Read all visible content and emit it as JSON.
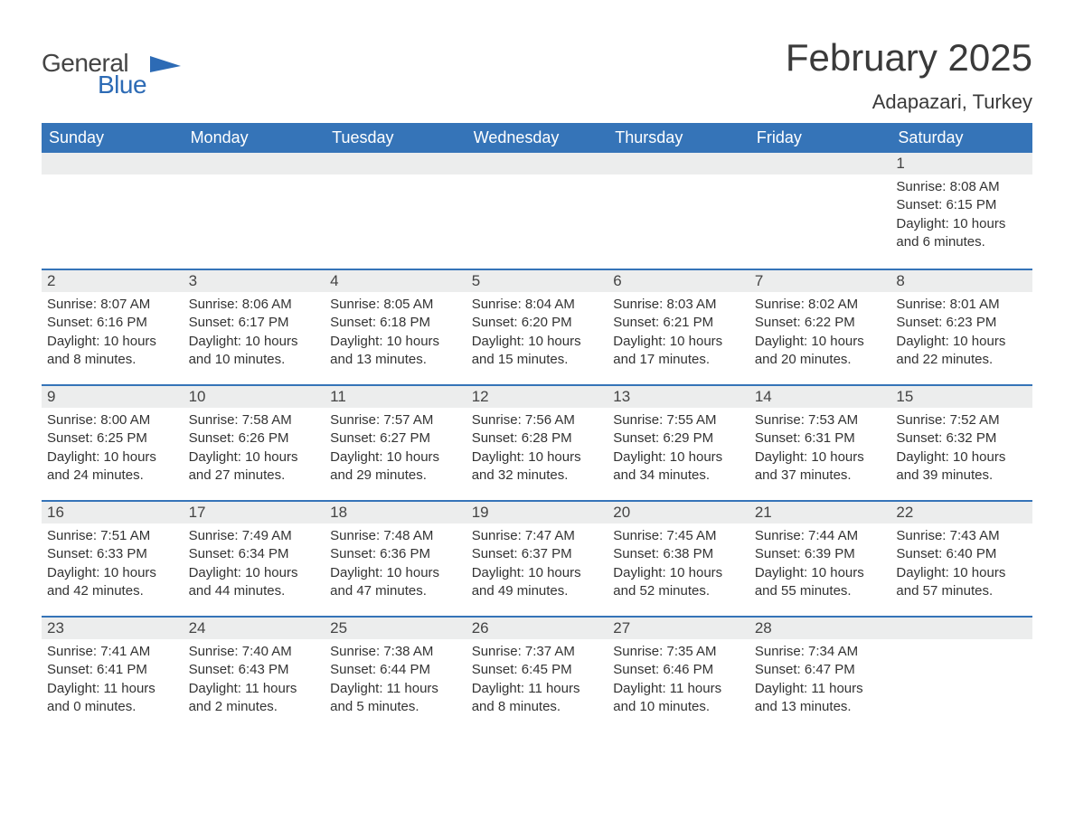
{
  "logo": {
    "text1": "General",
    "text2": "Blue",
    "icon_color": "#2d6bb5"
  },
  "title": "February 2025",
  "subtitle": "Adapazari, Turkey",
  "colors": {
    "header_bg": "#3574b8",
    "header_text": "#ffffff",
    "strip_bg": "#eceded",
    "border": "#3574b8",
    "body_text": "#333333",
    "title_text": "#3a3a3a",
    "logo_gray": "#444444",
    "logo_blue": "#2d6bb5",
    "page_bg": "#ffffff"
  },
  "typography": {
    "title_fontsize": 42,
    "subtitle_fontsize": 22,
    "dayheader_fontsize": 18,
    "daynum_fontsize": 17,
    "body_fontsize": 15,
    "logo_fontsize": 28
  },
  "layout": {
    "cols": 7,
    "rows": 5,
    "cell_min_height": 128
  },
  "labels": {
    "sunrise": "Sunrise:",
    "sunset": "Sunset:",
    "daylight": "Daylight:"
  },
  "day_names": [
    "Sunday",
    "Monday",
    "Tuesday",
    "Wednesday",
    "Thursday",
    "Friday",
    "Saturday"
  ],
  "weeks": [
    [
      {
        "empty": true
      },
      {
        "empty": true
      },
      {
        "empty": true
      },
      {
        "empty": true
      },
      {
        "empty": true
      },
      {
        "empty": true
      },
      {
        "num": "1",
        "sunrise": "8:08 AM",
        "sunset": "6:15 PM",
        "daylight": "10 hours and 6 minutes."
      }
    ],
    [
      {
        "num": "2",
        "sunrise": "8:07 AM",
        "sunset": "6:16 PM",
        "daylight": "10 hours and 8 minutes."
      },
      {
        "num": "3",
        "sunrise": "8:06 AM",
        "sunset": "6:17 PM",
        "daylight": "10 hours and 10 minutes."
      },
      {
        "num": "4",
        "sunrise": "8:05 AM",
        "sunset": "6:18 PM",
        "daylight": "10 hours and 13 minutes."
      },
      {
        "num": "5",
        "sunrise": "8:04 AM",
        "sunset": "6:20 PM",
        "daylight": "10 hours and 15 minutes."
      },
      {
        "num": "6",
        "sunrise": "8:03 AM",
        "sunset": "6:21 PM",
        "daylight": "10 hours and 17 minutes."
      },
      {
        "num": "7",
        "sunrise": "8:02 AM",
        "sunset": "6:22 PM",
        "daylight": "10 hours and 20 minutes."
      },
      {
        "num": "8",
        "sunrise": "8:01 AM",
        "sunset": "6:23 PM",
        "daylight": "10 hours and 22 minutes."
      }
    ],
    [
      {
        "num": "9",
        "sunrise": "8:00 AM",
        "sunset": "6:25 PM",
        "daylight": "10 hours and 24 minutes."
      },
      {
        "num": "10",
        "sunrise": "7:58 AM",
        "sunset": "6:26 PM",
        "daylight": "10 hours and 27 minutes."
      },
      {
        "num": "11",
        "sunrise": "7:57 AM",
        "sunset": "6:27 PM",
        "daylight": "10 hours and 29 minutes."
      },
      {
        "num": "12",
        "sunrise": "7:56 AM",
        "sunset": "6:28 PM",
        "daylight": "10 hours and 32 minutes."
      },
      {
        "num": "13",
        "sunrise": "7:55 AM",
        "sunset": "6:29 PM",
        "daylight": "10 hours and 34 minutes."
      },
      {
        "num": "14",
        "sunrise": "7:53 AM",
        "sunset": "6:31 PM",
        "daylight": "10 hours and 37 minutes."
      },
      {
        "num": "15",
        "sunrise": "7:52 AM",
        "sunset": "6:32 PM",
        "daylight": "10 hours and 39 minutes."
      }
    ],
    [
      {
        "num": "16",
        "sunrise": "7:51 AM",
        "sunset": "6:33 PM",
        "daylight": "10 hours and 42 minutes."
      },
      {
        "num": "17",
        "sunrise": "7:49 AM",
        "sunset": "6:34 PM",
        "daylight": "10 hours and 44 minutes."
      },
      {
        "num": "18",
        "sunrise": "7:48 AM",
        "sunset": "6:36 PM",
        "daylight": "10 hours and 47 minutes."
      },
      {
        "num": "19",
        "sunrise": "7:47 AM",
        "sunset": "6:37 PM",
        "daylight": "10 hours and 49 minutes."
      },
      {
        "num": "20",
        "sunrise": "7:45 AM",
        "sunset": "6:38 PM",
        "daylight": "10 hours and 52 minutes."
      },
      {
        "num": "21",
        "sunrise": "7:44 AM",
        "sunset": "6:39 PM",
        "daylight": "10 hours and 55 minutes."
      },
      {
        "num": "22",
        "sunrise": "7:43 AM",
        "sunset": "6:40 PM",
        "daylight": "10 hours and 57 minutes."
      }
    ],
    [
      {
        "num": "23",
        "sunrise": "7:41 AM",
        "sunset": "6:41 PM",
        "daylight": "11 hours and 0 minutes."
      },
      {
        "num": "24",
        "sunrise": "7:40 AM",
        "sunset": "6:43 PM",
        "daylight": "11 hours and 2 minutes."
      },
      {
        "num": "25",
        "sunrise": "7:38 AM",
        "sunset": "6:44 PM",
        "daylight": "11 hours and 5 minutes."
      },
      {
        "num": "26",
        "sunrise": "7:37 AM",
        "sunset": "6:45 PM",
        "daylight": "11 hours and 8 minutes."
      },
      {
        "num": "27",
        "sunrise": "7:35 AM",
        "sunset": "6:46 PM",
        "daylight": "11 hours and 10 minutes."
      },
      {
        "num": "28",
        "sunrise": "7:34 AM",
        "sunset": "6:47 PM",
        "daylight": "11 hours and 13 minutes."
      },
      {
        "empty": true
      }
    ]
  ]
}
